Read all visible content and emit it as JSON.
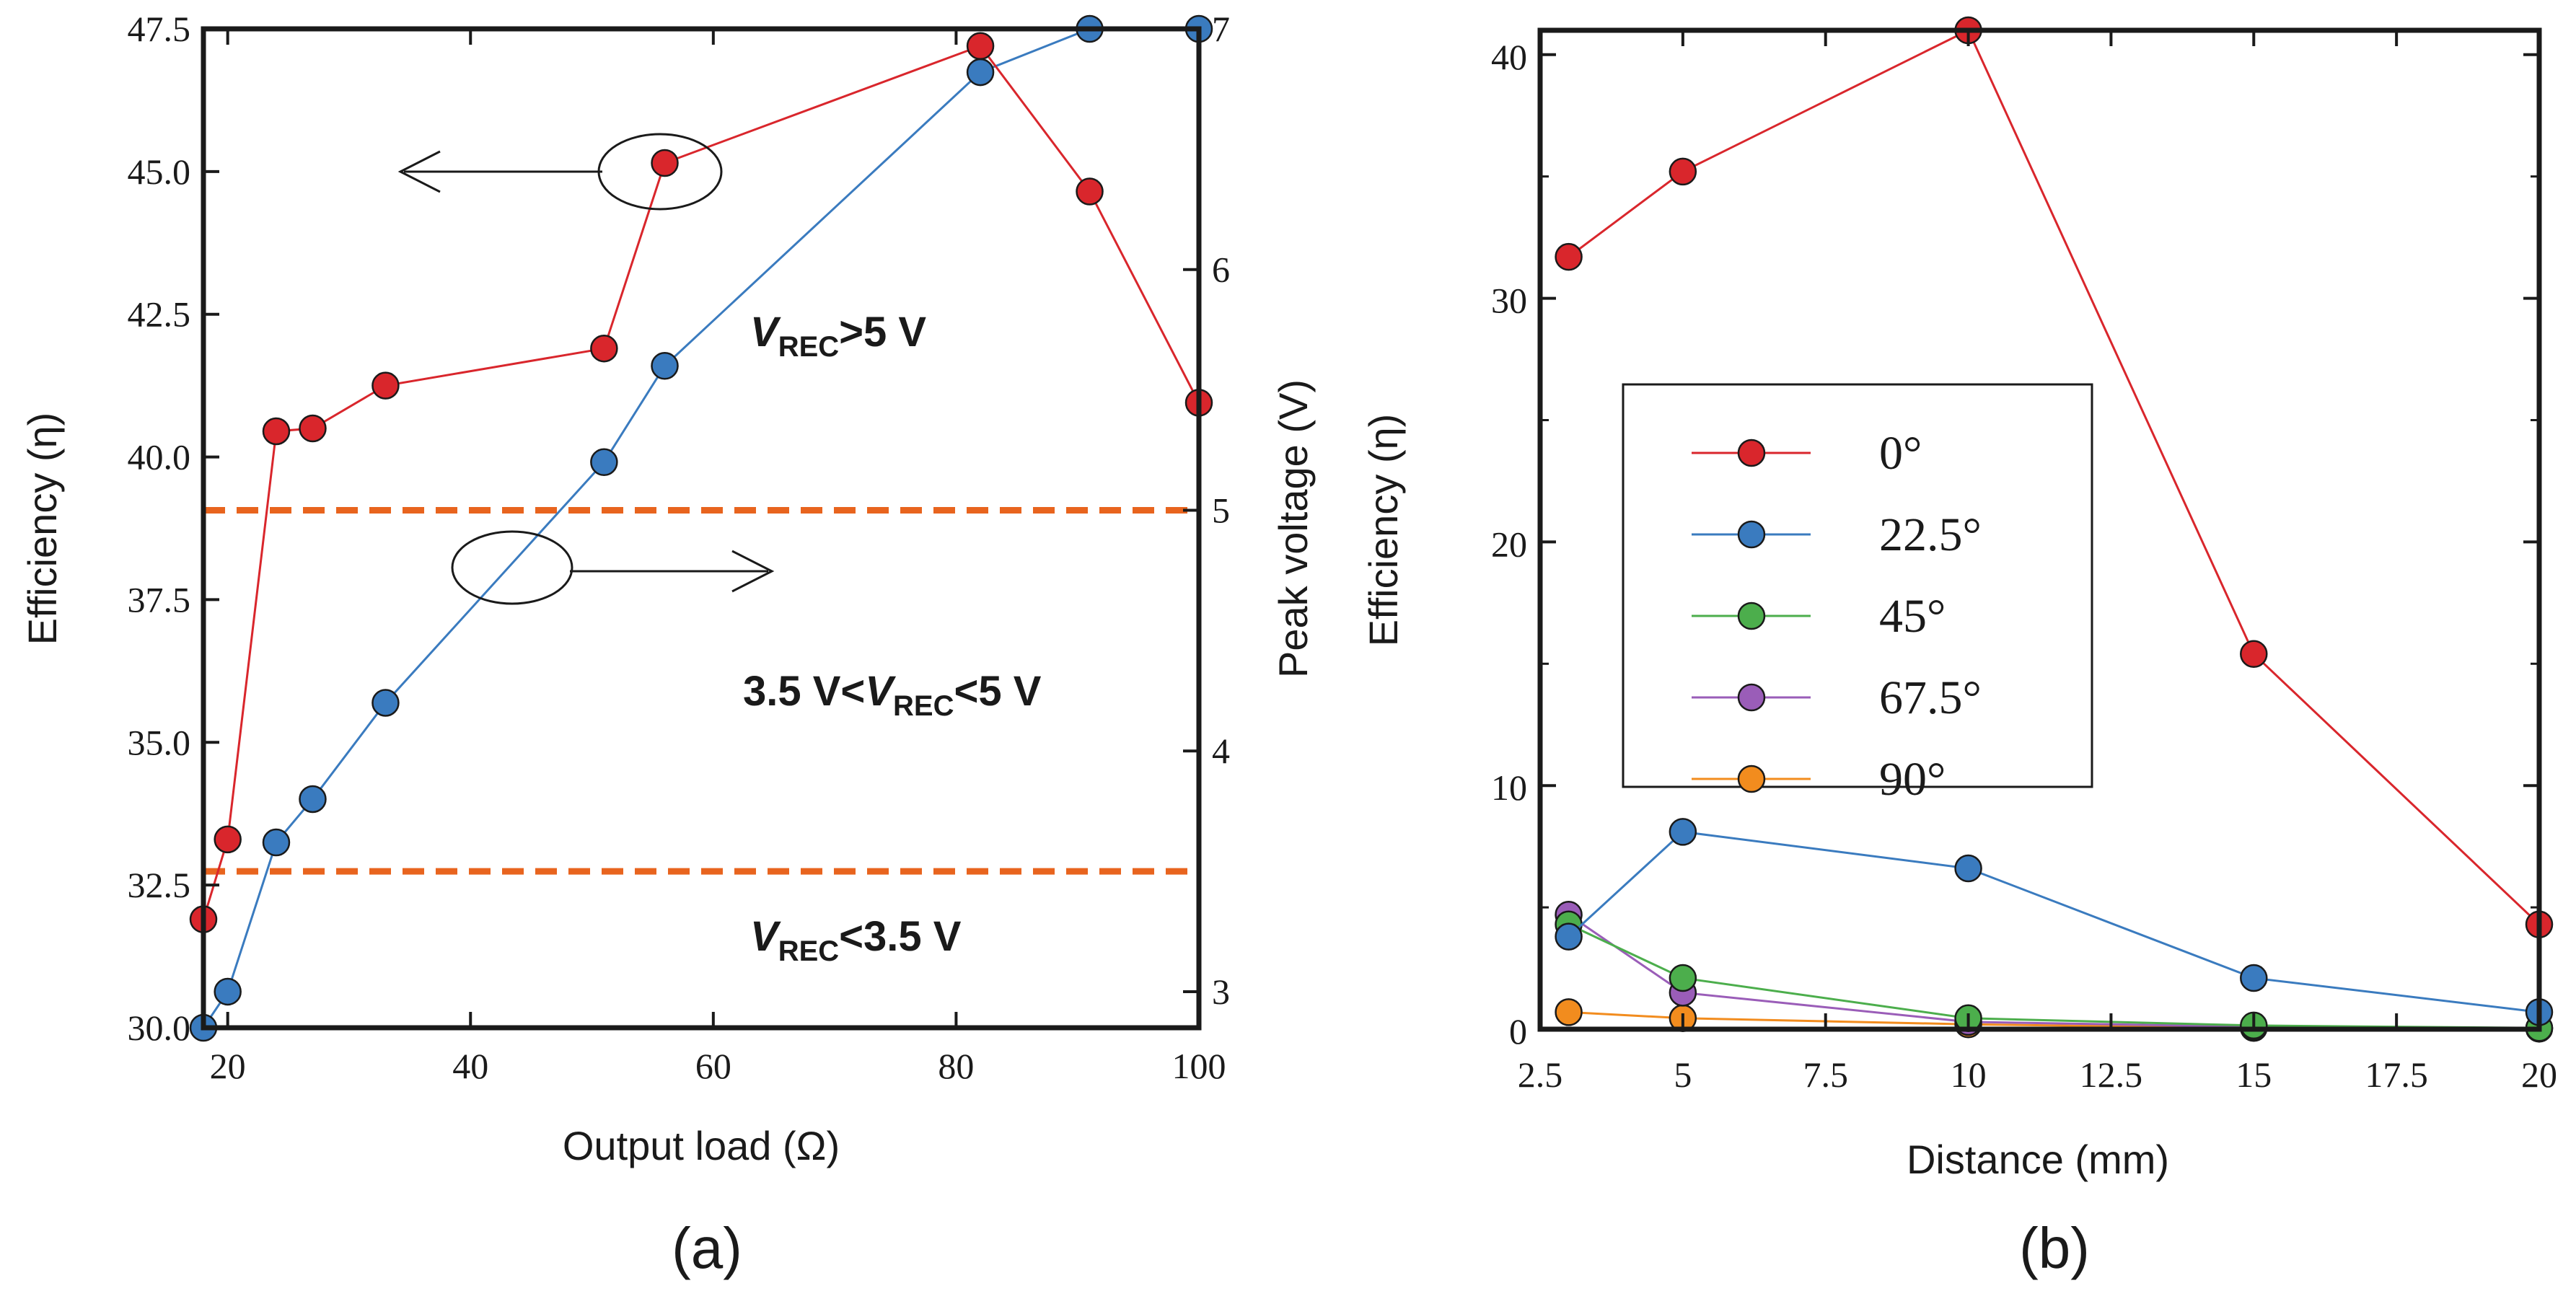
{
  "colors": {
    "red": "#d9262c",
    "blue": "#3a7bbf",
    "green": "#4cae4c",
    "purple": "#9a5db8",
    "orange": "#f28c1e",
    "threshold": "#e8641e",
    "axis": "#1a1a1a"
  },
  "chart_data": [
    {
      "type": "line",
      "panel_label": "(a)",
      "xlabel": "Output load  (Ω)",
      "ylabel": "Efficiency (η)",
      "y2label": "Peak voltage (V)",
      "xlim": [
        18,
        100
      ],
      "ylim": [
        30,
        47.5
      ],
      "y2lim": [
        2.85,
        7
      ],
      "xticks": [
        "20",
        "40",
        "60",
        "80",
        "100"
      ],
      "yticks": [
        "30.0",
        "32.5",
        "35.0",
        "37.5",
        "40.0",
        "42.5",
        "45.0",
        "47.5"
      ],
      "y2ticks": [
        "3",
        "4",
        "5",
        "6",
        "7"
      ],
      "series": [
        {
          "name": "Efficiency",
          "axis": "left",
          "color": "red",
          "x": [
            18,
            20,
            24,
            27,
            33,
            51,
            56,
            82,
            91,
            100
          ],
          "y": [
            31.9,
            33.3,
            40.45,
            40.5,
            41.25,
            41.9,
            45.15,
            47.2,
            44.65,
            40.95
          ]
        },
        {
          "name": "Peak voltage",
          "axis": "right",
          "color": "blue",
          "x": [
            18,
            20,
            24,
            27,
            33,
            51,
            56,
            82,
            91,
            100
          ],
          "y": [
            2.85,
            3.0,
            3.62,
            3.8,
            4.2,
            5.2,
            5.6,
            6.82,
            7.0,
            7.0
          ]
        }
      ],
      "thresholds": [
        {
          "axis": "right",
          "value": 5.0
        },
        {
          "axis": "right",
          "value": 3.5
        }
      ],
      "annotations": {
        "upper": {
          "v": "V",
          "sub": "REC",
          "rest": ">5 V"
        },
        "middle": {
          "prefix": "3.5 V<",
          "v": "V",
          "sub": "REC",
          "rest": "<5 V"
        },
        "lower": {
          "v": "V",
          "sub": "REC",
          "rest": "<3.5 V"
        }
      }
    },
    {
      "type": "line",
      "panel_label": "(b)",
      "xlabel": "Distance (mm)",
      "ylabel": "Efficiency (η)",
      "xlim": [
        2.5,
        20
      ],
      "ylim": [
        0,
        41
      ],
      "xticks": [
        2.5,
        5,
        7.5,
        10,
        12.5,
        15,
        17.5,
        20
      ],
      "xticklabels": [
        "2.5",
        "5",
        "7.5",
        "10",
        "12.5",
        "15",
        "17.5",
        "20"
      ],
      "yticks": [
        0,
        10,
        20,
        30,
        40
      ],
      "yticklabels": [
        "0",
        "10",
        "20",
        "30",
        "40"
      ],
      "x": [
        3,
        5,
        10,
        15,
        20
      ],
      "series": [
        {
          "name": "0°",
          "color": "red",
          "values": [
            31.7,
            35.2,
            41.0,
            15.4,
            4.3
          ]
        },
        {
          "name": "22.5°",
          "color": "blue",
          "values": [
            3.8,
            8.1,
            6.6,
            2.1,
            0.7
          ]
        },
        {
          "name": "45°",
          "color": "green",
          "values": [
            4.3,
            2.1,
            0.45,
            0.15,
            0.05
          ]
        },
        {
          "name": "67.5°",
          "color": "purple",
          "values": [
            4.7,
            1.5,
            0.3,
            0.1,
            0.05
          ]
        },
        {
          "name": "90°",
          "color": "orange",
          "values": [
            0.7,
            0.45,
            0.2,
            0.05,
            0.02
          ]
        }
      ],
      "legend_position": "center-left"
    }
  ]
}
